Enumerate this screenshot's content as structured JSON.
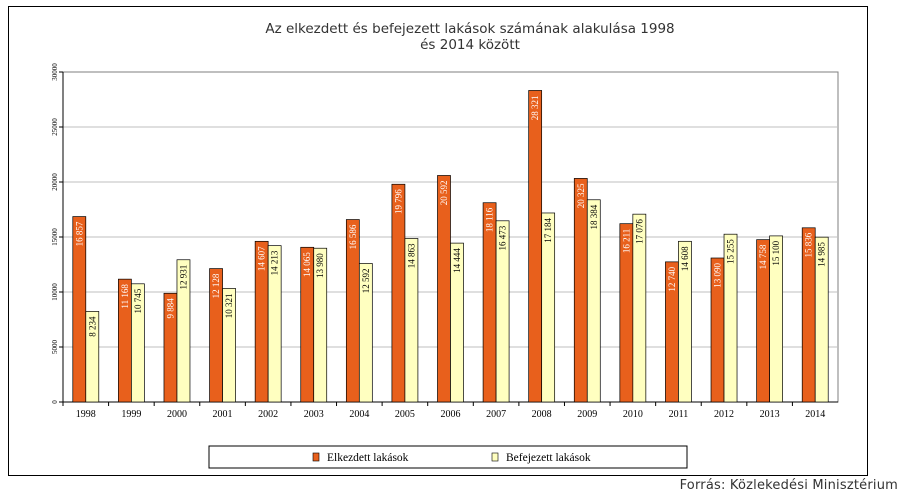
{
  "chart_data": {
    "type": "bar",
    "title": "Az elkezdett és befejezett lakások számának alakulása 1998",
    "subtitle": "és 2014 között",
    "categories": [
      "1998",
      "1999",
      "2000",
      "2001",
      "2002",
      "2003",
      "2004",
      "2005",
      "2006",
      "2007",
      "2008",
      "2009",
      "2010",
      "2011",
      "2012",
      "2013",
      "2014"
    ],
    "series": [
      {
        "name": "Elkezdett lakások",
        "color": "#E8601C",
        "values": [
          16857,
          11168,
          9884,
          12128,
          14607,
          14065,
          16586,
          19796,
          20592,
          18116,
          28321,
          20325,
          16211,
          12740,
          13090,
          14758,
          15836
        ],
        "labels": [
          "16 857",
          "11 168",
          "9 884",
          "12 128",
          "14 607",
          "14 065",
          "16 586",
          "19 796",
          "20 592",
          "18 116",
          "28 321",
          "20 325",
          "16 211",
          "12 740",
          "13 090",
          "14 758",
          "15 836"
        ]
      },
      {
        "name": "Befejezett lakások",
        "color": "#FFFFC0",
        "values": [
          8234,
          10745,
          12931,
          10321,
          14213,
          13980,
          12592,
          14863,
          14444,
          16473,
          17184,
          18384,
          17076,
          14608,
          15255,
          15100,
          14985
        ],
        "labels": [
          "8 234",
          "10 745",
          "12 931",
          "10 321",
          "14 213",
          "13 980",
          "12 592",
          "14 863",
          "14 444",
          "16 473",
          "17 184",
          "18 384",
          "17 076",
          "14 608",
          "15 255",
          "15 100",
          "14 985"
        ]
      }
    ],
    "ylim": [
      0,
      30000
    ],
    "yticks": [
      "0",
      "5000",
      "10000",
      "15000",
      "20000",
      "25000",
      "30000"
    ],
    "grid": true,
    "legend_position": "bottom"
  },
  "source": "Forrás: Közlekedési Minisztérium"
}
